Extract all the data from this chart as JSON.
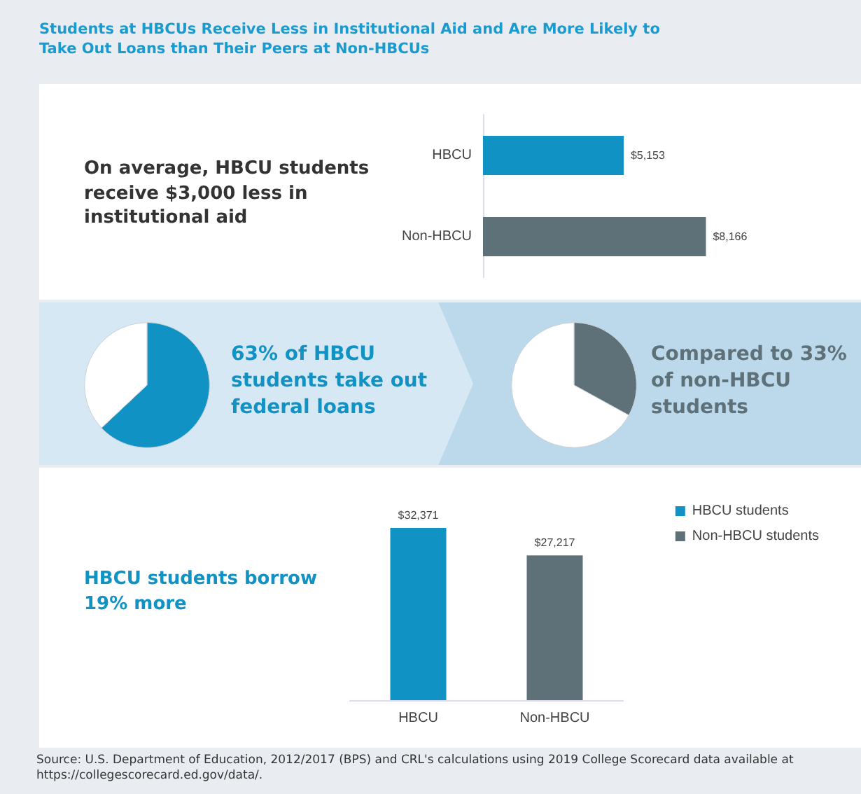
{
  "chart_data": [
    {
      "type": "bar",
      "orientation": "horizontal",
      "title": "Students at HBCUs Receive Less in Institutional Aid and Are More Likely to Take Out Loans than Their Peers at Non-HBCUs",
      "annotations": [
        "On average, HBCU students receive $3,000 less in institutional aid"
      ],
      "categories": [
        "HBCU",
        "Non-HBCU"
      ],
      "values": [
        5153,
        8166
      ],
      "colors": [
        "#1192c4",
        "#5f7178"
      ],
      "value_labels": [
        "$5,153",
        "$8,166"
      ],
      "tick_labels": "y"
    },
    {
      "type": "pie",
      "annotations": [
        "63% of HBCU students take out federal loans"
      ],
      "categories": [
        null,
        null
      ],
      "values": [
        63,
        37
      ],
      "colors": [
        "#1192c4",
        "#ffffff"
      ]
    },
    {
      "type": "pie",
      "annotations": [
        "Compared to 33% of non-HBCU students"
      ],
      "categories": [
        null,
        null
      ],
      "values": [
        33,
        67
      ],
      "colors": [
        "#5f7178",
        "#ffffff"
      ]
    },
    {
      "type": "bar",
      "annotations": [
        "HBCU students borrow 19% more",
        "Source: U.S. Department of Education, 2012/2017 (BPS) and CRL's calculations using 2019 College Scorecard data available at https://collegescorecard.ed.gov/data/."
      ],
      "categories": [
        "HBCU",
        "Non-HBCU"
      ],
      "legend": "top right",
      "tick_labels": "x",
      "series": [
        {
          "name": "HBCU students",
          "color": "#1192c4",
          "values": [
            32371,
            null
          ],
          "value_labels": [
            "$32,371",
            null
          ]
        },
        {
          "name": "Non-HBCU students",
          "color": "#5f7178",
          "values": [
            null,
            27217
          ],
          "value_labels": [
            null,
            "$27,217"
          ]
        }
      ]
    }
  ]
}
